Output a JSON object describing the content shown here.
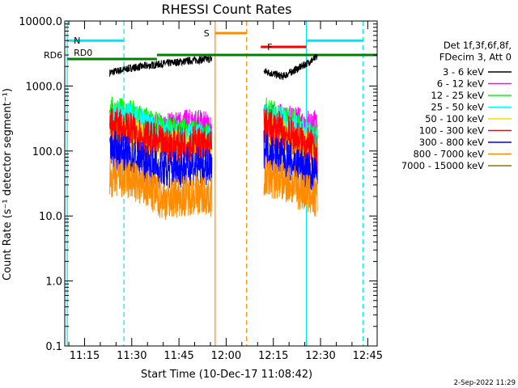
{
  "chart_data": {
    "type": "line",
    "title": "RHESSI Count Rates",
    "xlabel": "Start Time (10-Dec-17 11:08:42)",
    "ylabel": "Count Rate (s⁻¹ detector segment⁻¹)",
    "y_scale": "log",
    "ylim": [
      0.1,
      10000
    ],
    "xlim": [
      "11:08:42",
      "12:48:00"
    ],
    "x_ticks": [
      "11:15",
      "11:30",
      "11:45",
      "12:00",
      "12:15",
      "12:30",
      "12:45"
    ],
    "y_ticks": [
      "0.1",
      "1.0",
      "10.0",
      "100.0",
      "1000.0",
      "10000.0"
    ],
    "legend_header": [
      "Det 1f,3f,6f,8f,",
      "FDecim 3, Att 0"
    ],
    "legend_position": "right",
    "grid": false,
    "series": [
      {
        "name": "3 - 6 keV",
        "color": "#000000",
        "segments": [
          {
            "x": [
              "11:23",
              "11:30",
              "11:40",
              "11:50",
              "11:55:30"
            ],
            "y": [
              1600,
              1900,
              2200,
              2500,
              2600
            ]
          },
          {
            "x": [
              "12:12",
              "12:18",
              "12:24",
              "12:29"
            ],
            "y": [
              1700,
              1400,
              2000,
              2800
            ]
          }
        ]
      },
      {
        "name": "6 - 12 keV",
        "color": "#ff00ff",
        "segments": [
          {
            "x": [
              "11:23",
              "11:30",
              "11:40",
              "11:50",
              "11:55:30"
            ],
            "y": [
              350,
              260,
              220,
              270,
              220
            ]
          },
          {
            "x": [
              "12:12",
              "12:18",
              "12:24",
              "12:29"
            ],
            "y": [
              330,
              300,
              270,
              250
            ]
          }
        ]
      },
      {
        "name": "12 - 25 keV",
        "color": "#00ff00",
        "segments": [
          {
            "x": [
              "11:23",
              "11:30",
              "11:40",
              "11:50",
              "11:55:30"
            ],
            "y": [
              400,
              350,
              200,
              180,
              150
            ]
          },
          {
            "x": [
              "12:12",
              "12:18",
              "12:24",
              "12:29"
            ],
            "y": [
              400,
              300,
              220,
              160
            ]
          }
        ]
      },
      {
        "name": "25 - 50 keV",
        "color": "#00ffff",
        "segments": [
          {
            "x": [
              "11:23",
              "11:30",
              "11:40",
              "11:50",
              "11:55:30"
            ],
            "y": [
              320,
              300,
              170,
              150,
              130
            ]
          },
          {
            "x": [
              "12:12",
              "12:18",
              "12:24",
              "12:29"
            ],
            "y": [
              320,
              260,
              180,
              130
            ]
          }
        ]
      },
      {
        "name": "50 - 100 keV",
        "color": "#ffd700",
        "segments": [
          {
            "x": [
              "11:23",
              "11:30",
              "11:40",
              "11:50",
              "11:55:30"
            ],
            "y": [
              220,
              180,
              110,
              110,
              95
            ]
          },
          {
            "x": [
              "12:12",
              "12:18",
              "12:24",
              "12:29"
            ],
            "y": [
              220,
              170,
              120,
              90
            ]
          }
        ]
      },
      {
        "name": "100 - 300 keV",
        "color": "#ff0000",
        "segments": [
          {
            "x": [
              "11:23",
              "11:30",
              "11:40",
              "11:50",
              "11:55:30"
            ],
            "y": [
              250,
              200,
              120,
              130,
              110
            ]
          },
          {
            "x": [
              "12:12",
              "12:18",
              "12:24",
              "12:29"
            ],
            "y": [
              250,
              200,
              140,
              90
            ]
          }
        ]
      },
      {
        "name": "300 - 800 keV",
        "color": "#0000ff",
        "segments": [
          {
            "x": [
              "11:23",
              "11:30",
              "11:40",
              "11:50",
              "11:55:30"
            ],
            "y": [
              110,
              80,
              50,
              60,
              50
            ]
          },
          {
            "x": [
              "12:12",
              "12:18",
              "12:24",
              "12:29"
            ],
            "y": [
              110,
              80,
              55,
              40
            ]
          }
        ]
      },
      {
        "name": "800 - 7000 keV",
        "color": "#ff8c00",
        "segments": [
          {
            "x": [
              "11:23",
              "11:30",
              "11:40",
              "11:50",
              "11:55:30"
            ],
            "y": [
              40,
              35,
              18,
              22,
              20
            ]
          },
          {
            "x": [
              "12:12",
              "12:18",
              "12:24",
              "12:29"
            ],
            "y": [
              40,
              35,
              25,
              18
            ]
          }
        ]
      },
      {
        "name": "7000 - 15000 keV",
        "color": "#8b7500",
        "segments": []
      }
    ],
    "markers": {
      "vlines": [
        {
          "x": "11:09:30",
          "color": "#00e5ee",
          "style": "solid"
        },
        {
          "x": "11:27:30",
          "color": "#00e5ee",
          "style": "dashed"
        },
        {
          "x": "11:56:30",
          "color": "#ff8c00",
          "style": "solid"
        },
        {
          "x": "12:06:30",
          "color": "#ff8c00",
          "style": "dashed"
        },
        {
          "x": "12:25:30",
          "color": "#00e5ee",
          "style": "solid"
        },
        {
          "x": "12:43:30",
          "color": "#00e5ee",
          "style": "dashed"
        }
      ],
      "bars": [
        {
          "label": "N",
          "color": "#00e5ee",
          "x": [
            "11:09:30",
            "11:27:30"
          ],
          "y": 5000
        },
        {
          "label": "S",
          "color": "#ff8c00",
          "x": [
            "11:56:30",
            "12:06:30"
          ],
          "y": 6500
        },
        {
          "label": "F",
          "color": "#ff0000",
          "x": [
            "12:11",
            "12:25:30"
          ],
          "y": 4000
        },
        {
          "label": "",
          "color": "#00e5ee",
          "x": [
            "12:25:30",
            "12:43:30"
          ],
          "y": 5000
        },
        {
          "label": "RD0",
          "color": "#008000",
          "x": [
            "11:09:30",
            "11:38"
          ],
          "y": 2600
        },
        {
          "label": "RD6",
          "color": "#008000",
          "x": [
            "11:38",
            "12:48"
          ],
          "y": 3000
        }
      ]
    }
  },
  "footer": {
    "datestamp": "2-Sep-2022 11:29"
  }
}
